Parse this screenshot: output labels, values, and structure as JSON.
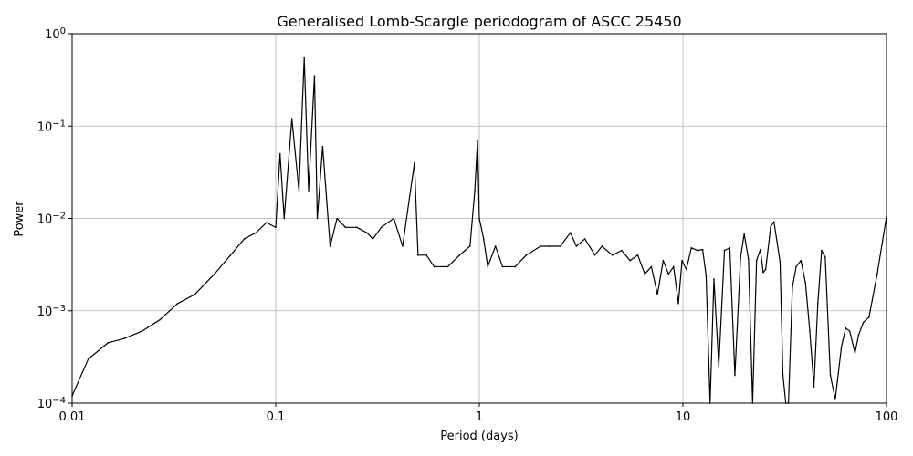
{
  "chart_data": {
    "type": "line",
    "title": "Generalised Lomb-Scargle periodogram of ASCC 25450",
    "xlabel": "Period (days)",
    "ylabel": "Power",
    "xscale": "log",
    "yscale": "log",
    "xlim": [
      0.01,
      100
    ],
    "ylim": [
      0.0001,
      1
    ],
    "grid": true,
    "line_color": "#000000",
    "grid_color": "#b0b0b0",
    "x_ticks": [
      {
        "value": 0.01,
        "label": "0.01"
      },
      {
        "value": 0.1,
        "label": "0.1"
      },
      {
        "value": 1,
        "label": "1"
      },
      {
        "value": 10,
        "label": "10"
      },
      {
        "value": 100,
        "label": "100"
      }
    ],
    "y_ticks": [
      {
        "value": 0.0001,
        "base": "10",
        "exp": "−4"
      },
      {
        "value": 0.001,
        "base": "10",
        "exp": "−3"
      },
      {
        "value": 0.01,
        "base": "10",
        "exp": "−2"
      },
      {
        "value": 0.1,
        "base": "10",
        "exp": "−1"
      },
      {
        "value": 1,
        "base": "10",
        "exp": "0"
      }
    ],
    "series": [
      {
        "x": [
          0.01,
          0.012,
          0.015,
          0.018,
          0.022,
          0.027,
          0.033,
          0.04,
          0.05,
          0.06,
          0.07,
          0.08,
          0.09,
          0.1,
          0.105,
          0.11,
          0.12,
          0.13,
          0.138,
          0.145,
          0.155,
          0.16,
          0.17,
          0.185,
          0.2,
          0.22,
          0.25,
          0.28,
          0.3,
          0.33,
          0.38,
          0.42,
          0.48,
          0.5,
          0.55,
          0.6,
          0.7,
          0.8,
          0.9,
          0.95,
          0.98,
          1.0,
          1.05,
          1.1,
          1.2,
          1.3,
          1.5,
          1.7,
          2.0,
          2.2,
          2.5,
          2.8,
          3.0,
          3.3,
          3.7,
          4.0,
          4.5,
          5.0,
          5.5,
          6.0,
          6.5,
          7.0,
          7.5,
          8.0,
          8.5,
          9.0,
          9.5,
          9.9,
          10.4,
          11.0,
          11.8,
          12.5,
          13.0,
          13.6,
          14.2,
          15.0,
          16.0,
          17.0,
          18.0,
          19.2,
          20.0,
          21.0,
          22.0,
          23.0,
          24.0,
          24.8,
          25.5,
          27.0,
          28.0,
          30.0,
          31.0,
          32.0,
          33.0,
          34.5,
          36.0,
          38.0,
          40.0,
          42.0,
          44.0,
          46.0,
          48.0,
          50.0,
          53.0,
          56.0,
          60.0,
          63.0,
          66.0,
          70.0,
          73.0,
          77.0,
          82.0,
          90.0,
          100.0
        ],
        "y": [
          0.00012,
          0.0003,
          0.00045,
          0.0005,
          0.0006,
          0.0008,
          0.0012,
          0.0015,
          0.0025,
          0.004,
          0.006,
          0.007,
          0.009,
          0.008,
          0.05,
          0.01,
          0.12,
          0.02,
          0.55,
          0.02,
          0.35,
          0.01,
          0.06,
          0.005,
          0.01,
          0.008,
          0.008,
          0.007,
          0.006,
          0.008,
          0.01,
          0.005,
          0.04,
          0.004,
          0.004,
          0.003,
          0.003,
          0.004,
          0.005,
          0.02,
          0.07,
          0.01,
          0.006,
          0.003,
          0.005,
          0.003,
          0.003,
          0.004,
          0.005,
          0.005,
          0.005,
          0.007,
          0.005,
          0.006,
          0.004,
          0.005,
          0.004,
          0.0045,
          0.0035,
          0.004,
          0.0025,
          0.003,
          0.0015,
          0.0035,
          0.0025,
          0.003,
          0.0012,
          0.0035,
          0.0028,
          0.0048,
          0.0045,
          0.0046,
          0.0024,
          0.0001,
          0.0022,
          0.00025,
          0.0045,
          0.0048,
          0.0002,
          0.0038,
          0.0068,
          0.0036,
          0.0001,
          0.0035,
          0.0046,
          0.0026,
          0.0028,
          0.0082,
          0.0092,
          0.0034,
          0.0002,
          0.0001,
          0.0001,
          0.0018,
          0.003,
          0.0035,
          0.002,
          0.0006,
          0.00015,
          0.0012,
          0.0045,
          0.0038,
          0.0002,
          0.00011,
          0.0004,
          0.00065,
          0.0006,
          0.00035,
          0.00055,
          0.00075,
          0.00085,
          0.0025,
          0.0105
        ]
      }
    ]
  }
}
